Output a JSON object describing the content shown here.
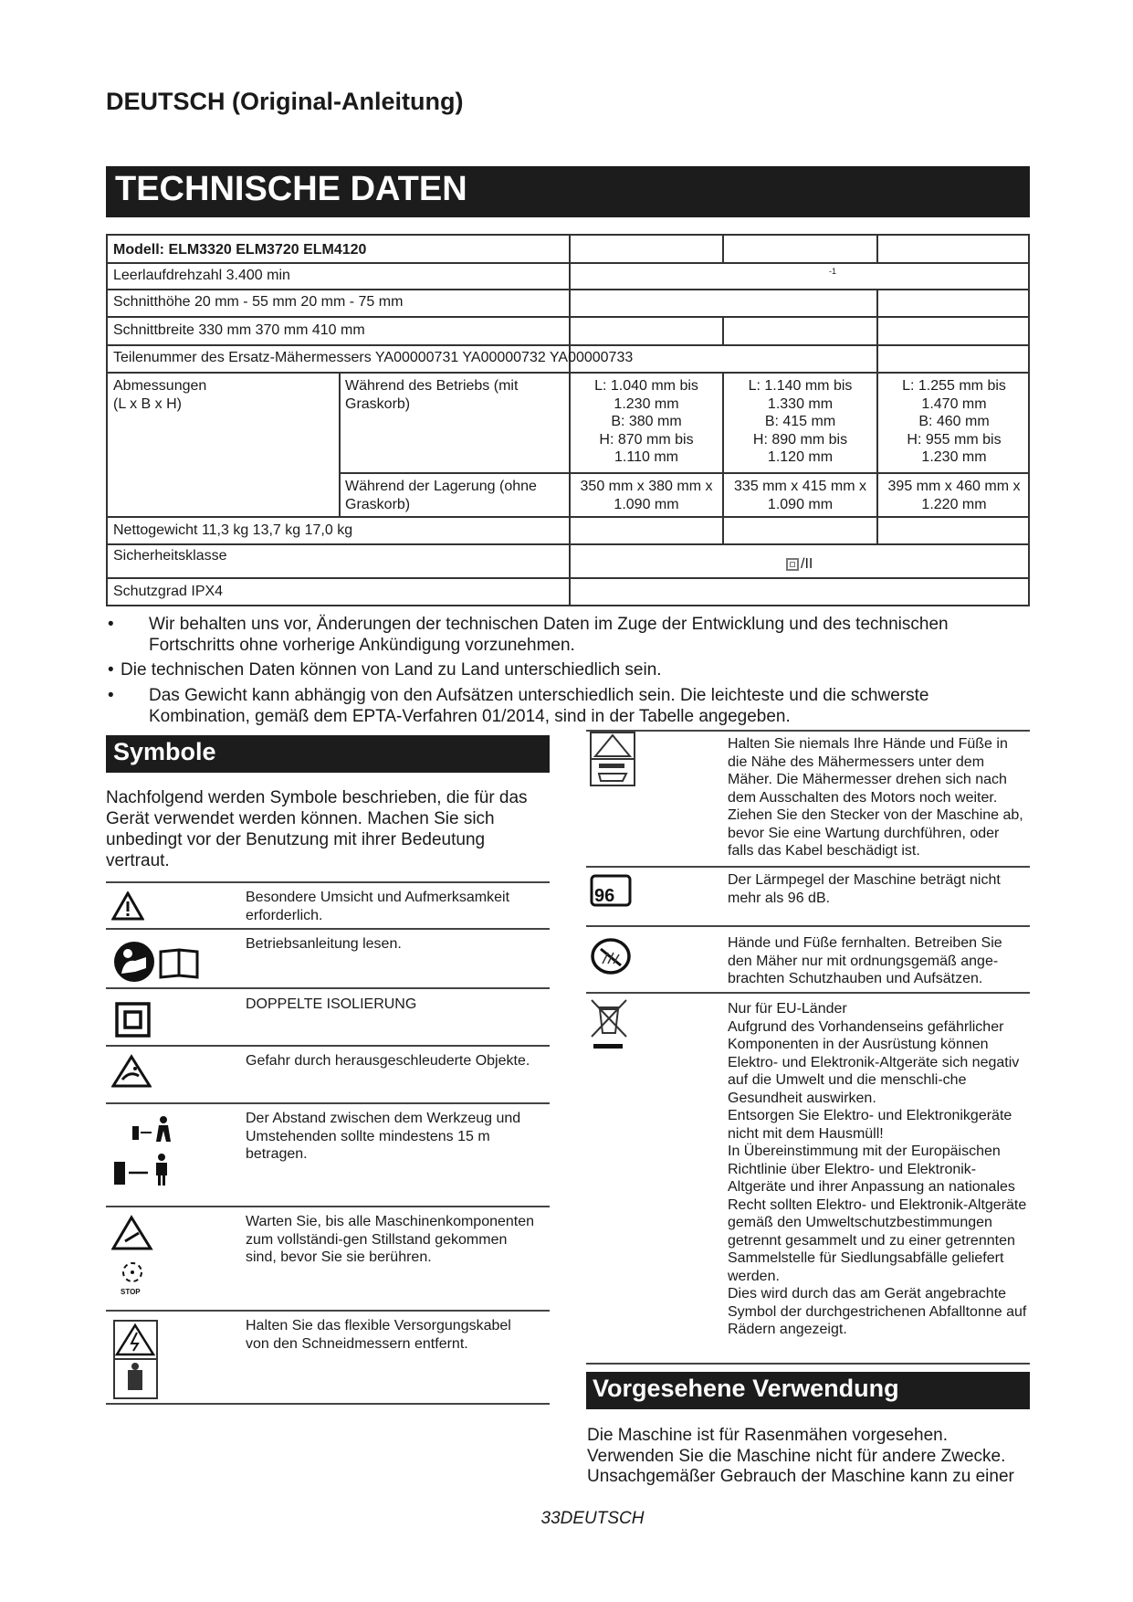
{
  "header": {
    "title": "DEUTSCH (Original-Anleitung)"
  },
  "tech": {
    "heading": "TECHNISCHE DATEN",
    "rows": {
      "model": "Modell: ELM3320 ELM3720 ELM4120",
      "speed": "Leerlaufdrehzahl 3.400 min",
      "speed_sup": "-1",
      "height": "Schnitthöhe 20 mm - 55 mm 20 mm - 75 mm",
      "width": "Schnittbreite 330 mm 370 mm 410 mm",
      "part": "Teilenummer des Ersatz-Mähermessers YA00000731 YA00000732 YA00000733",
      "dim_label": "Abmessungen\n(L x B x H)",
      "dim_op_label": "Während des Betriebs (mit Graskorb)",
      "dim_op": [
        "L: 1.040 mm bis\n1.230 mm\nB: 380 mm\nH: 870 mm bis\n1.110 mm",
        "L: 1.140 mm bis\n1.330 mm\nB: 415 mm\nH: 890 mm bis\n1.120 mm",
        "L: 1.255 mm bis\n1.470 mm\nB: 460 mm\nH: 955 mm bis\n1.230 mm"
      ],
      "dim_st_label": "Während der Lagerung (ohne Graskorb)",
      "dim_st": [
        "350 mm x 380 mm x\n1.090 mm",
        "335 mm x 415 mm x\n1.090 mm",
        "395 mm x 460 mm x\n1.220 mm"
      ],
      "weight": "Nettogewicht 11,3 kg 13,7 kg 17,0 kg",
      "safety": "Sicherheitsklasse",
      "safety_val": "/II",
      "ip": "Schutzgrad IPX4"
    }
  },
  "notes": [
    "Wir behalten uns vor, Änderungen der technischen Daten im Zuge der Entwicklung und des technischen Fortschritts ohne vorherige Ankündigung vorzunehmen.",
    "Die technischen Daten können von Land zu Land unterschiedlich sein.",
    "Das Gewicht kann abhängig von den Aufsätzen unterschiedlich sein. Die leichteste und die schwerste Kombination, gemäß dem EPTA-Verfahren 01/2014, sind in der Tabelle angegeben."
  ],
  "symbols": {
    "heading": "Symbole",
    "intro": "Nachfolgend werden Symbole beschrieben, die für das Gerät verwendet werden können. Machen Sie sich unbedingt vor der Benutzung mit ihrer Bedeutung vertraut.",
    "left": [
      {
        "icon": "warning-triangle-icon",
        "text": "Besondere Umsicht und Aufmerksamkeit erforderlich."
      },
      {
        "icon": "read-manual-icon",
        "text": "Betriebsanleitung lesen."
      },
      {
        "icon": "double-insulation-icon",
        "text": "DOPPELTE ISOLIERUNG"
      },
      {
        "icon": "thrown-objects-icon",
        "text": "Gefahr durch herausgeschleuderte Objekte."
      },
      {
        "icon": "distance-bystander-icon",
        "text": "Der Abstand zwischen dem Werkzeug und Umstehenden sollte mindestens 15 m betragen."
      },
      {
        "icon": "wait-stop-icon",
        "text": "Warten Sie, bis alle Maschinenkomponenten zum vollständi-gen Stillstand gekommen sind, bevor Sie sie berühren.",
        "icon_label": "STOP"
      },
      {
        "icon": "cable-blade-icon",
        "text": "Halten Sie das flexible Versorgungskabel von den Schneidmessern entfernt."
      }
    ],
    "right": [
      {
        "icon": "blade-hands-feet-icon",
        "text": "Halten Sie niemals Ihre Hände und Füße in die Nähe des Mähermessers unter dem Mäher. Die Mähermesser drehen sich nach dem Ausschalten des Motors noch weiter. Ziehen Sie den Stecker von der Maschine ab, bevor Sie eine Wartung durchführen, oder falls das Kabel beschädigt ist."
      },
      {
        "icon": "noise-level-icon",
        "text": "Der Lärmpegel der Maschine beträgt nicht mehr als 96 dB.",
        "icon_label": "96"
      },
      {
        "icon": "keep-hands-away-icon",
        "text": "Hände und Füße fernhalten. Betreiben Sie den Mäher nur mit ordnungsgemäß ange-brachten Schutzhauben und Aufsätzen."
      },
      {
        "icon": "weee-bin-icon",
        "text": "Nur für EU-Länder\nAufgrund des Vorhandenseins gefährlicher Komponenten in der Ausrüstung können Elektro- und Elektronik-Altgeräte sich negativ auf die Umwelt und die menschli-che Gesundheit auswirken.\nEntsorgen Sie Elektro- und Elektronikgeräte nicht mit dem Hausmüll!\nIn Übereinstimmung mit der Europäischen Richtlinie über Elektro- und Elektronik-Altgeräte und ihrer Anpassung an nationales Recht sollten Elektro- und Elektronik-Altgeräte gemäß den Umweltschutzbestimmungen getrennt gesammelt und zu einer getrennten Sammelstelle für Siedlungsabfälle geliefert werden.\nDies wird durch das am Gerät angebrachte Symbol der durchgestrichenen Abfalltonne auf Rädern angezeigt."
      }
    ]
  },
  "use": {
    "heading": "Vorgesehene Verwendung",
    "text": "Die Maschine ist für Rasenmähen vorgesehen. Verwenden Sie die Maschine nicht für andere Zwecke. Unsachgemäßer Gebrauch der Maschine kann zu einer"
  },
  "footer": {
    "page": "33DEUTSCH"
  }
}
